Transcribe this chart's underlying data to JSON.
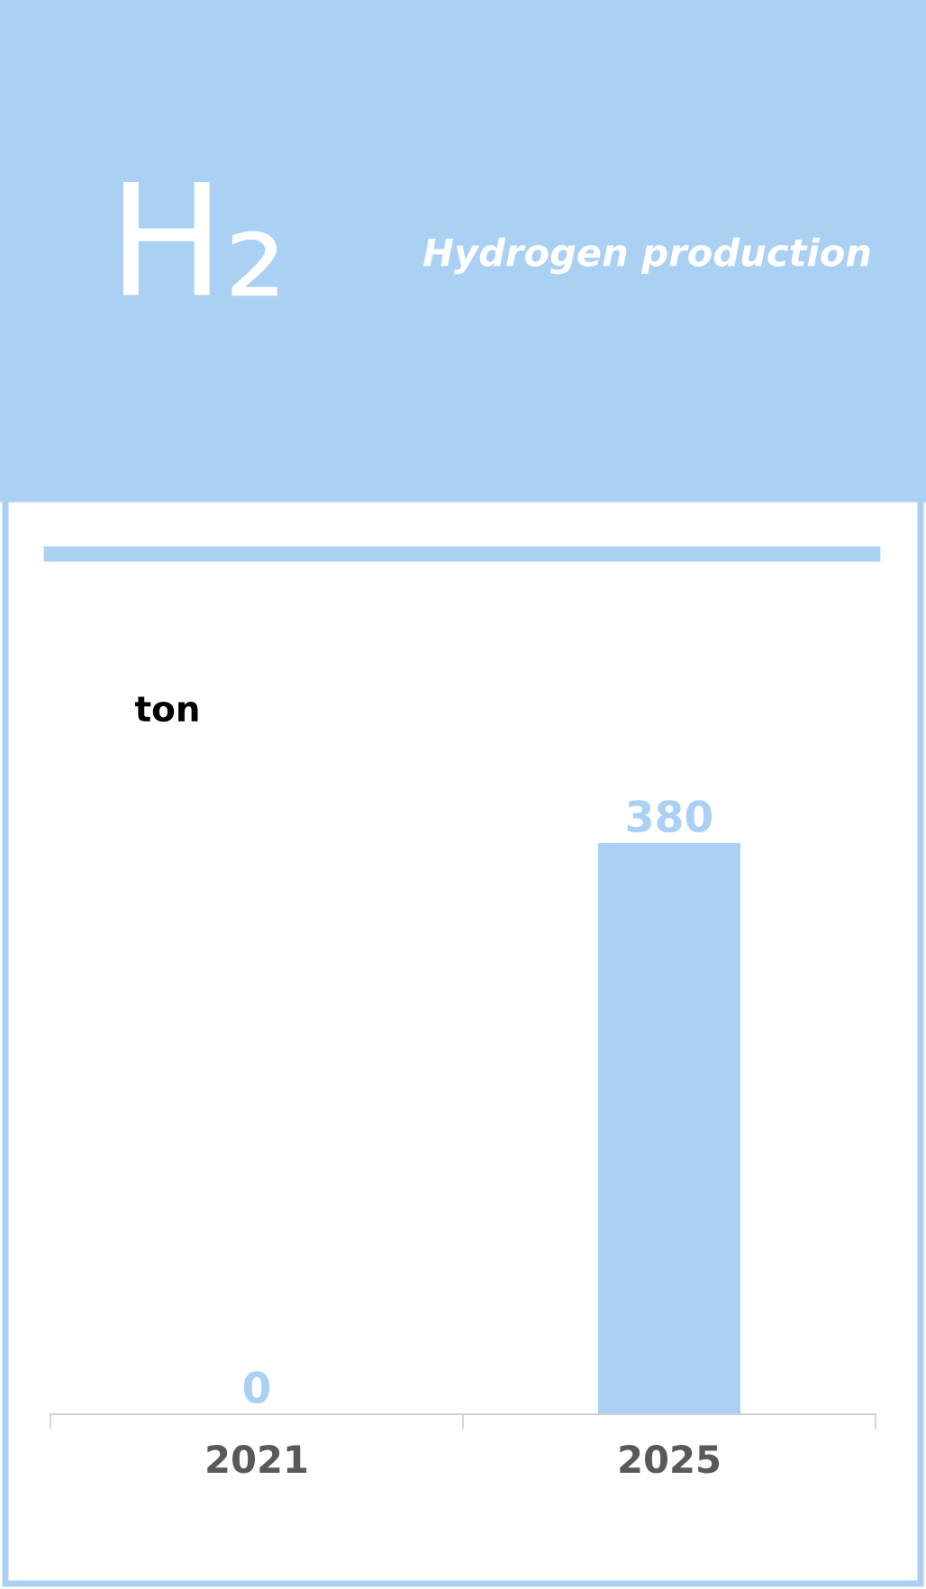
{
  "chart_data": {
    "type": "bar",
    "title": "H₂",
    "subtitle": "Hydrogen production",
    "ylabel": "ton",
    "categories": [
      "2021",
      "2025"
    ],
    "values": [
      0,
      380
    ],
    "color": "#aad1f3",
    "data_labels": true,
    "grid": false,
    "legend": false
  }
}
